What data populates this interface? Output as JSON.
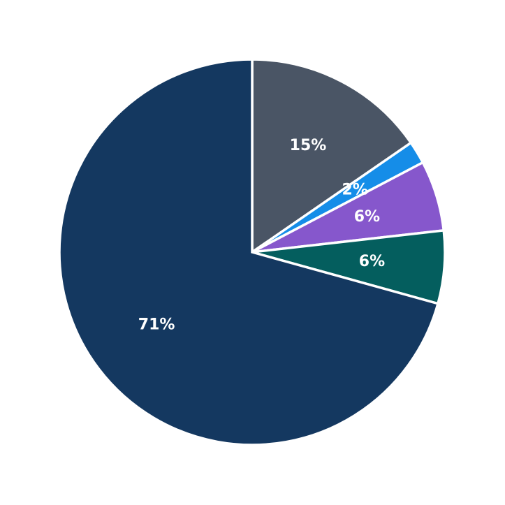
{
  "chart_data": {
    "type": "pie",
    "title": "",
    "start_angle": "top",
    "direction": "clockwise",
    "legend": "none",
    "slices": [
      {
        "label": "15%",
        "value": 15.4,
        "color": "#4a5565"
      },
      {
        "label": "2%",
        "value": 1.9,
        "color": "#158de8"
      },
      {
        "label": "6%",
        "value": 5.9,
        "color": "#8657cc"
      },
      {
        "label": "6%",
        "value": 6.1,
        "color": "#045e5e"
      },
      {
        "label": "71%",
        "value": 70.7,
        "color": "#143860"
      }
    ]
  }
}
